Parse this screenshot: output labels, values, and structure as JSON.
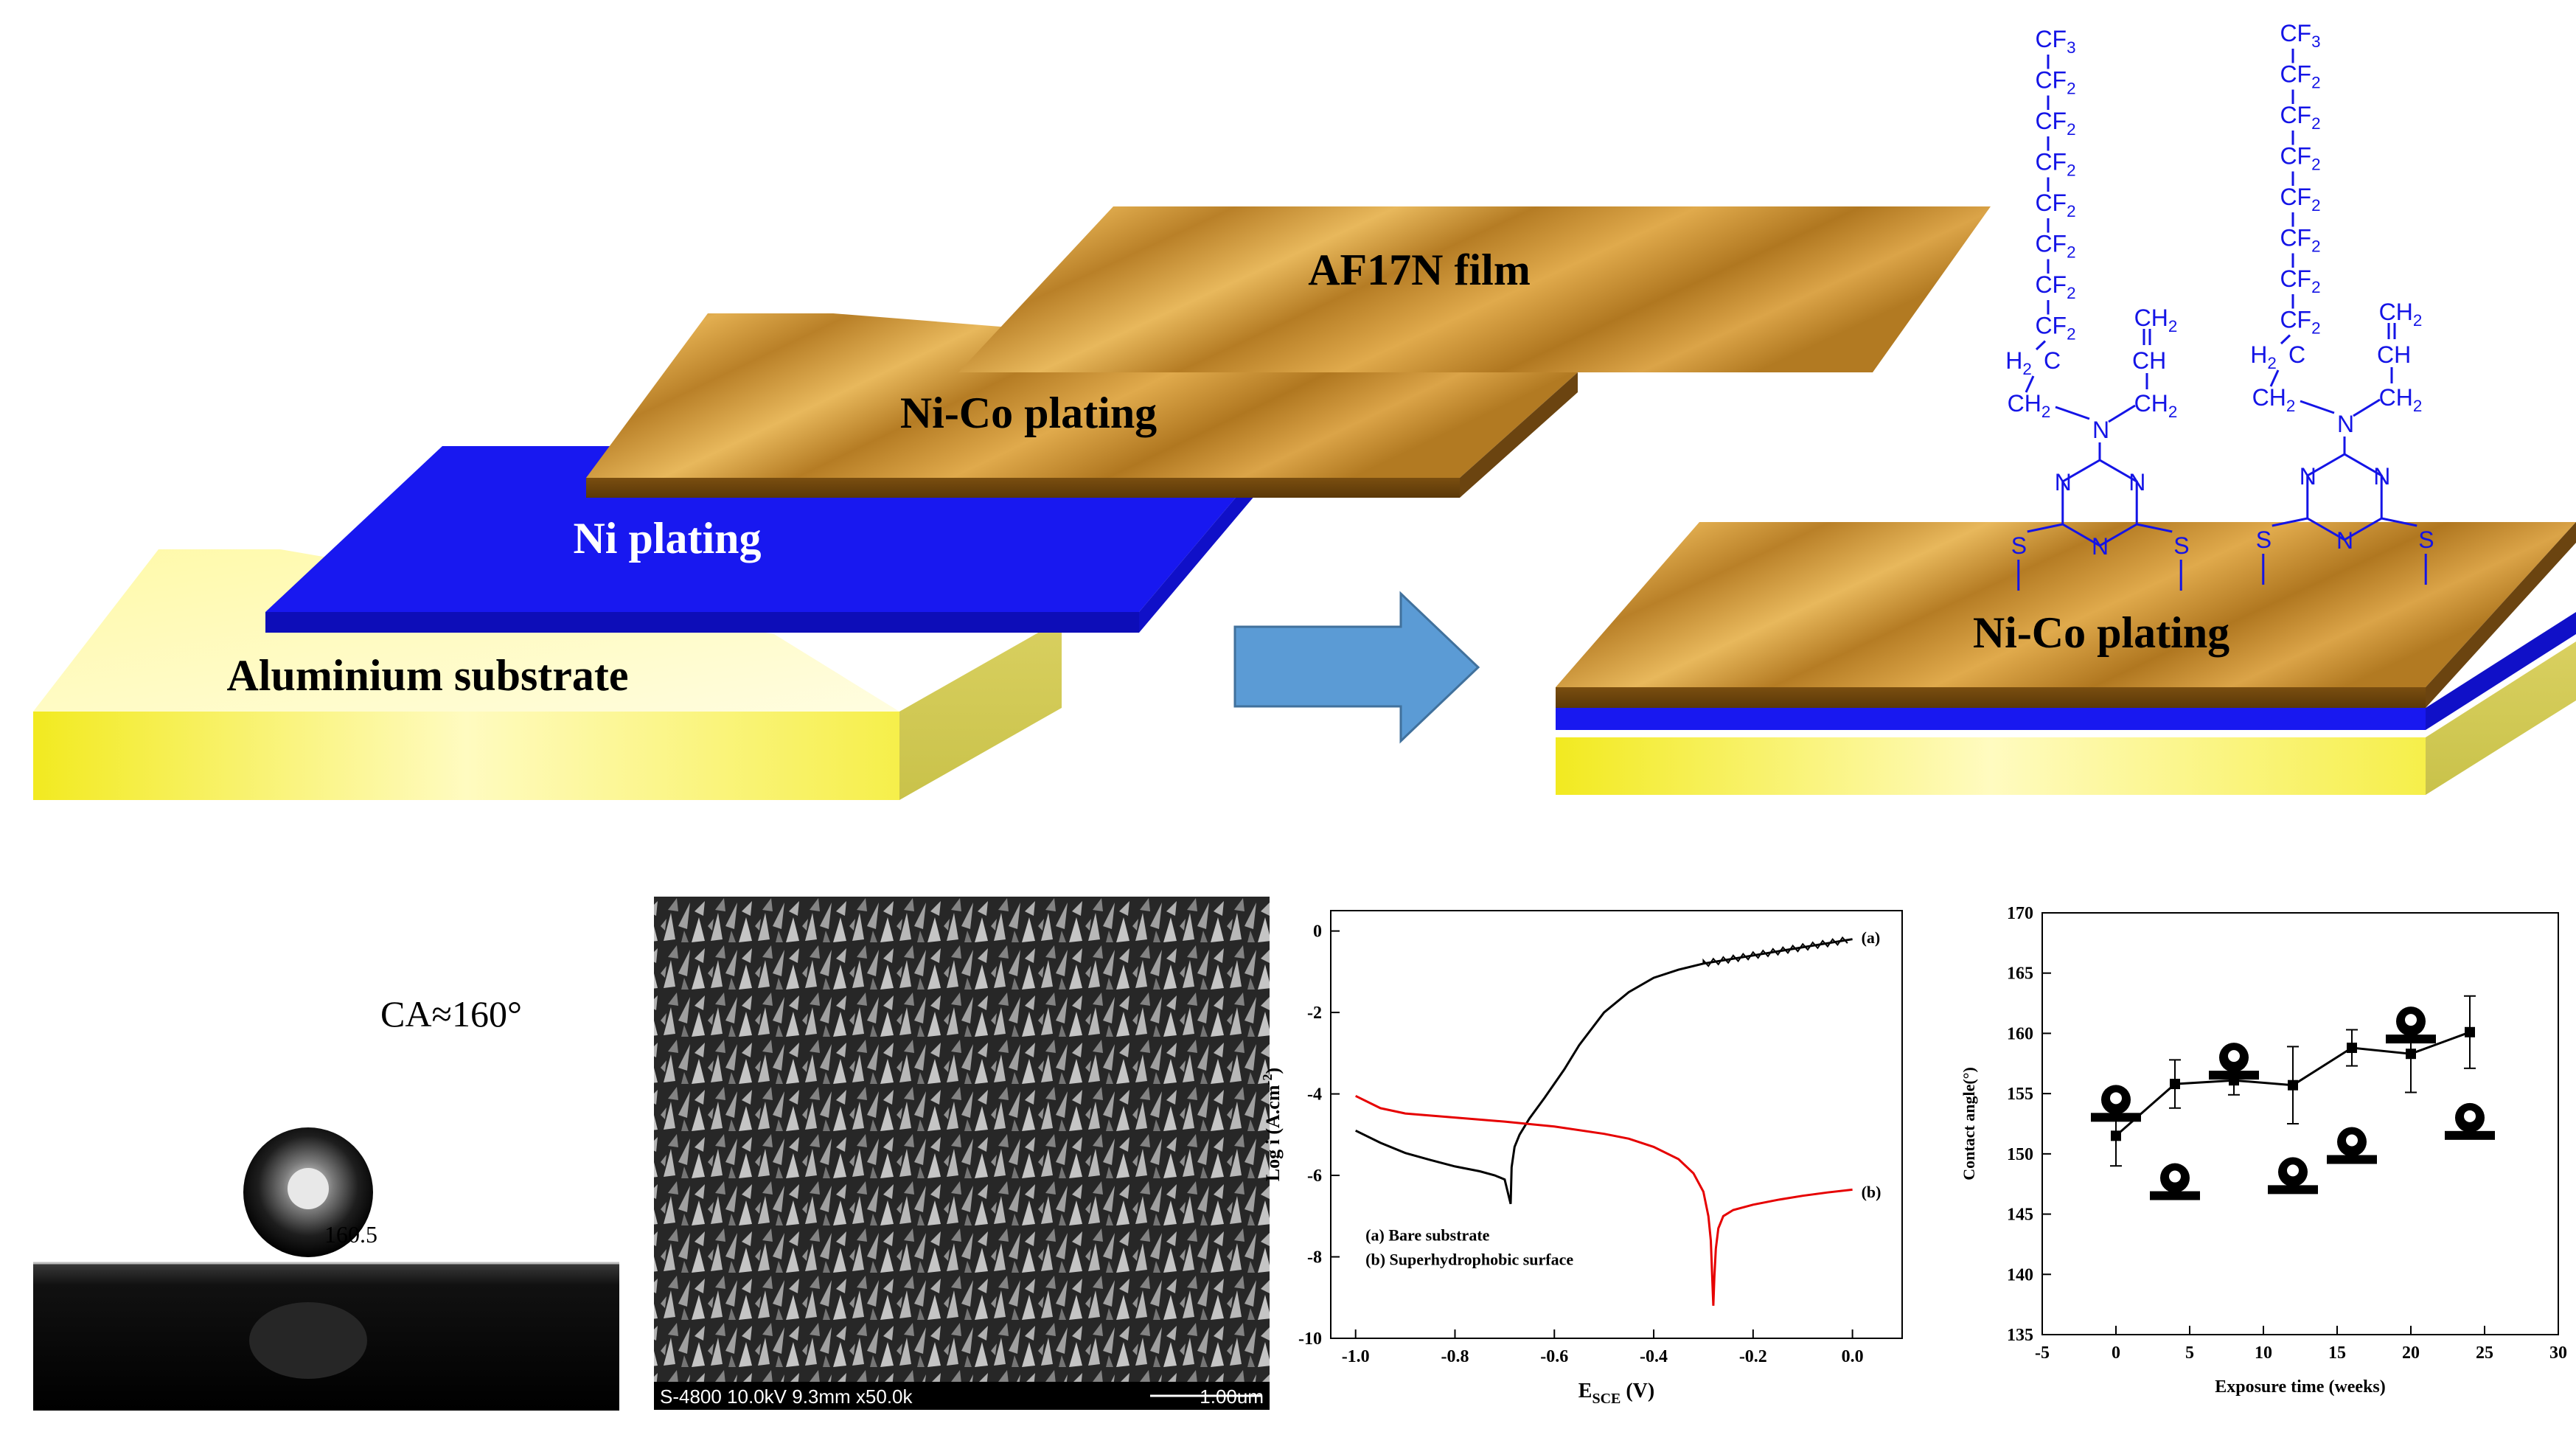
{
  "layers": {
    "aluminium": "Aluminium substrate",
    "ni": "Ni plating",
    "nico": "Ni-Co plating",
    "af17n": "AF17N film",
    "nico_result": "Ni-Co plating"
  },
  "molecule": {
    "cf3": "CF3",
    "cf2": "CF2",
    "h2c": "H2C",
    "ch2": "CH2",
    "ch": "CH",
    "n": "N",
    "s": "S"
  },
  "droplet": {
    "ca_label": "CA≈160°",
    "angle_value": "160.5"
  },
  "sem": {
    "info": "S-4800 10.0kV 9.3mm x50.0k",
    "scale": "1.00um"
  },
  "colors": {
    "aluminium": "#f4ee3c",
    "ni": "#1a1af0",
    "nico": "#c8902e",
    "arrow": "#5b9bd5",
    "chem": "#1414e6",
    "curve_a": "#000000",
    "curve_b": "#e60000"
  },
  "chart_data": [
    {
      "type": "line",
      "x_label": "E",
      "x_label_sub": "SCE",
      "x_unit": "(V)",
      "y_label": "Log i (A.cm",
      "y_label_sup": "-2",
      "y_label_end": ")",
      "xlim": [
        -1.05,
        0.1
      ],
      "ylim": [
        -10,
        0.5
      ],
      "xticks": [
        "-1.0",
        "-0.8",
        "-0.6",
        "-0.4",
        "-0.2",
        "0.0"
      ],
      "xtick_values": [
        -1.0,
        -0.8,
        -0.6,
        -0.4,
        -0.2,
        0.0
      ],
      "yticks": [
        "0",
        "-2",
        "-4",
        "-6",
        "-8",
        "-10"
      ],
      "ytick_values": [
        0,
        -2,
        -4,
        -6,
        -8,
        -10
      ],
      "legend": [
        "(a)  Bare substrate",
        "(b)  Superhydrophobic surface"
      ],
      "series": [
        {
          "name": "(a)",
          "color": "#000000",
          "x": [
            -1.0,
            -0.95,
            -0.9,
            -0.85,
            -0.8,
            -0.75,
            -0.72,
            -0.7,
            -0.69,
            -0.688,
            -0.686,
            -0.68,
            -0.67,
            -0.65,
            -0.62,
            -0.58,
            -0.55,
            -0.5,
            -0.45,
            -0.4,
            -0.35,
            -0.3,
            -0.25,
            -0.2,
            -0.15,
            -0.1,
            -0.05,
            0.0
          ],
          "y": [
            -4.9,
            -5.2,
            -5.45,
            -5.62,
            -5.78,
            -5.9,
            -6.0,
            -6.1,
            -6.6,
            -6.7,
            -5.8,
            -5.3,
            -5.0,
            -4.6,
            -4.1,
            -3.4,
            -2.8,
            -2.0,
            -1.5,
            -1.15,
            -0.95,
            -0.8,
            -0.7,
            -0.6,
            -0.5,
            -0.4,
            -0.3,
            -0.2
          ]
        },
        {
          "name": "(b)",
          "color": "#e60000",
          "x": [
            -1.0,
            -0.95,
            -0.9,
            -0.8,
            -0.7,
            -0.6,
            -0.5,
            -0.45,
            -0.4,
            -0.35,
            -0.32,
            -0.3,
            -0.29,
            -0.285,
            -0.282,
            -0.28,
            -0.278,
            -0.275,
            -0.27,
            -0.26,
            -0.24,
            -0.2,
            -0.15,
            -0.1,
            -0.05,
            0.0
          ],
          "y": [
            -4.05,
            -4.35,
            -4.48,
            -4.58,
            -4.68,
            -4.8,
            -4.98,
            -5.1,
            -5.3,
            -5.6,
            -5.95,
            -6.4,
            -7.0,
            -7.6,
            -8.6,
            -9.2,
            -8.5,
            -7.8,
            -7.3,
            -7.0,
            -6.85,
            -6.72,
            -6.6,
            -6.5,
            -6.42,
            -6.35
          ]
        }
      ],
      "annotations": [
        "(a)",
        "(b)"
      ]
    },
    {
      "type": "line",
      "x_label": "Exposure time (weeks)",
      "y_label": "Contact angle(°)",
      "xlim": [
        -5,
        30
      ],
      "ylim": [
        135,
        170
      ],
      "xticks": [
        "-5",
        "0",
        "5",
        "10",
        "15",
        "20",
        "25",
        "30"
      ],
      "xtick_values": [
        -5,
        0,
        5,
        10,
        15,
        20,
        25,
        30
      ],
      "yticks": [
        "135",
        "140",
        "145",
        "150",
        "155",
        "160",
        "165",
        "170"
      ],
      "ytick_values": [
        135,
        140,
        145,
        150,
        155,
        160,
        165,
        170
      ],
      "series": [
        {
          "x": [
            0,
            4,
            8,
            12,
            16,
            20,
            24
          ],
          "y": [
            151.5,
            155.8,
            156.1,
            155.7,
            158.8,
            158.3,
            160.1
          ],
          "err": [
            2.5,
            2.0,
            1.2,
            3.2,
            1.5,
            3.2,
            3.0
          ]
        }
      ],
      "droplet_icons": [
        {
          "x": 0,
          "y": 154.5
        },
        {
          "x": 4,
          "y": 148.0
        },
        {
          "x": 8,
          "y": 158.0
        },
        {
          "x": 12,
          "y": 148.5
        },
        {
          "x": 16,
          "y": 151.0
        },
        {
          "x": 20,
          "y": 161.0
        },
        {
          "x": 24,
          "y": 153.0
        }
      ]
    }
  ]
}
